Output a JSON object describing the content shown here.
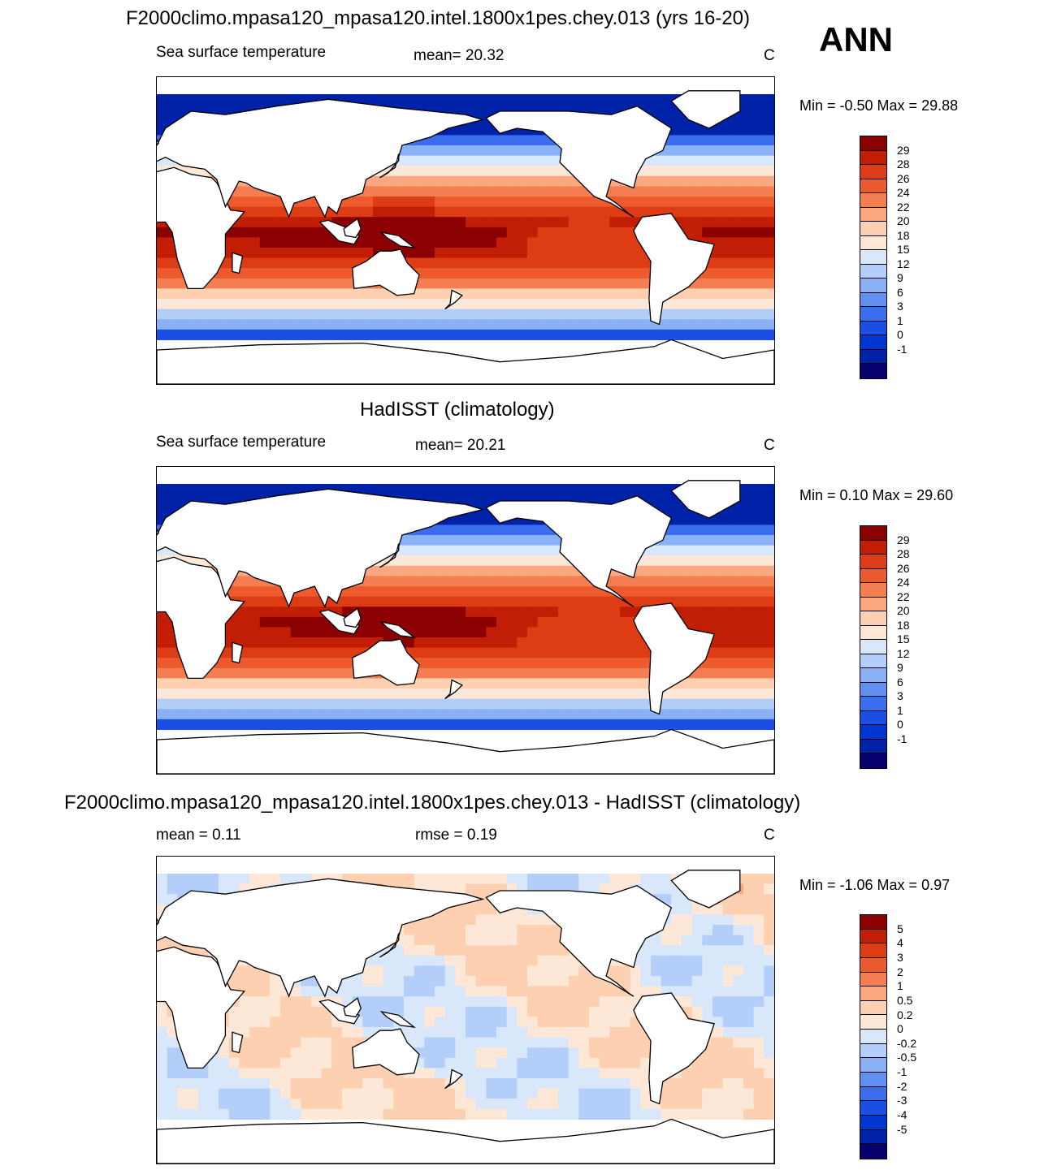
{
  "title": "F2000climo.mpasa120_mpasa120.intel.1800x1pes.chey.013 (yrs 16-20)",
  "season": "ANN",
  "colors": {
    "land": "#ffffff",
    "coast": "#000000",
    "sst_palette": [
      "#08006e",
      "#0022a8",
      "#0036d0",
      "#1a4fe6",
      "#3b6eee",
      "#6190f2",
      "#8ab0f6",
      "#b3cef8",
      "#d8e8fa",
      "#fde8d8",
      "#fcd0b0",
      "#f9a880",
      "#f47e52",
      "#ec5a2e",
      "#dd3c14",
      "#c21e06",
      "#8b0000"
    ],
    "diff_palette": [
      "#08006e",
      "#0022a8",
      "#0036d0",
      "#1a4fe6",
      "#3b6eee",
      "#6190f2",
      "#8ab0f6",
      "#b3cef8",
      "#d8e8fa",
      "#fde8d8",
      "#fcd0b0",
      "#f9a880",
      "#f47e52",
      "#ec5a2e",
      "#dd3c14",
      "#c21e06",
      "#8b0000"
    ]
  },
  "panels": [
    {
      "title": "",
      "left_label": "Sea surface temperature",
      "stat_label": "mean=  20.32",
      "units": "C",
      "minmax": "Min =  -0.50 Max =  29.88",
      "palette": "sst"
    },
    {
      "title": "HadISST (climatology)",
      "left_label": "Sea surface temperature",
      "stat_label": "mean=  20.21",
      "units": "C",
      "minmax": "Min =   0.10 Max =  29.60",
      "palette": "sst"
    },
    {
      "title": "F2000climo.mpasa120_mpasa120.intel.1800x1pes.chey.013 - HadISST (climatology)",
      "left_label": "mean =   0.11",
      "stat_label": "rmse =   0.19",
      "units": "C",
      "minmax": "Min =  -1.06 Max =   0.97",
      "palette": "diff"
    }
  ],
  "chart_data": [
    {
      "type": "heatmap",
      "title": "F2000climo.mpasa120_mpasa120.intel.1800x1pes.chey.013 (yrs 16-20)",
      "variable": "Sea surface temperature",
      "units": "C",
      "mean": 20.32,
      "min": -0.5,
      "max": 29.88,
      "colorbar_levels": [
        "29",
        "28",
        "26",
        "24",
        "22",
        "20",
        "18",
        "15",
        "12",
        "9",
        "6",
        "3",
        "1",
        "0",
        "-1"
      ]
    },
    {
      "type": "heatmap",
      "title": "HadISST (climatology)",
      "variable": "Sea surface temperature",
      "units": "C",
      "mean": 20.21,
      "min": 0.1,
      "max": 29.6,
      "colorbar_levels": [
        "29",
        "28",
        "26",
        "24",
        "22",
        "20",
        "18",
        "15",
        "12",
        "9",
        "6",
        "3",
        "1",
        "0",
        "-1"
      ]
    },
    {
      "type": "heatmap",
      "title": "F2000climo.mpasa120_mpasa120.intel.1800x1pes.chey.013 - HadISST (climatology)",
      "units": "C",
      "mean": 0.11,
      "rmse": 0.19,
      "min": -1.06,
      "max": 0.97,
      "colorbar_levels": [
        "5",
        "4",
        "3",
        "2",
        "1",
        "0.5",
        "0.2",
        "0",
        "-0.2",
        "-0.5",
        "-1",
        "-2",
        "-3",
        "-4",
        "-5"
      ]
    }
  ]
}
